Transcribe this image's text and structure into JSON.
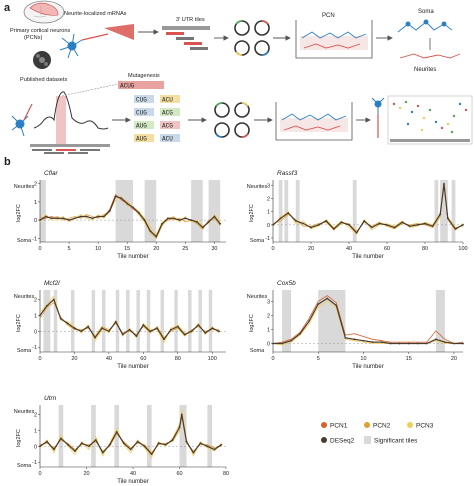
{
  "panel_a": {
    "letter": "a",
    "pcn_label_1": "Primary cortical neurons",
    "pcn_label_2": "(PCNs)",
    "published_label": "Published datasets",
    "neurite_mrna_label": "Neurite-localized mRNAs",
    "utr_tiles_label": "3′ UTR tiles",
    "pcn_box_label": "PCN",
    "soma_label": "Soma",
    "neurites_label": "Neurites",
    "mutagenesis_label": "Mutagenesis",
    "motif_top": "ACUG",
    "motif_variants": [
      [
        "CUG",
        "ACU"
      ],
      [
        "CUG",
        "ACG"
      ],
      [
        "AUG",
        "ACG"
      ],
      [
        "AUG",
        "ACU"
      ]
    ]
  },
  "panel_b": {
    "letter": "b",
    "y_neurites": "Neurites",
    "y_soma": "Soma",
    "y_axis": "log2FC",
    "x_axis": "Tile number",
    "legend": {
      "pcn1": "PCN1",
      "pcn2": "PCN2",
      "pcn3": "PCN3",
      "deseq2": "DESeq2",
      "significant": "Significant tiles"
    }
  },
  "colors": {
    "pcn1": "#d8602a",
    "pcn2": "#e0a030",
    "pcn3": "#f0cf58",
    "deseq2": "#4a3a30",
    "significant": "#d9d9d9",
    "header_red": "#d9534f"
  },
  "chart_data": [
    {
      "type": "line",
      "title": "Cflar",
      "xlabel": "Tile number",
      "ylabel": "log2FC",
      "xlim": [
        0,
        32
      ],
      "ylim": [
        -1.2,
        2.2
      ],
      "xticks": [
        0,
        5,
        10,
        15,
        20,
        25,
        30
      ],
      "yticks": [
        -1,
        0,
        1,
        2
      ],
      "significant": [
        [
          0,
          1
        ],
        [
          13,
          16
        ],
        [
          18,
          20
        ],
        [
          26,
          28
        ],
        [
          29,
          31
        ]
      ],
      "x": [
        0,
        1,
        2,
        3,
        4,
        5,
        6,
        7,
        8,
        9,
        10,
        11,
        12,
        13,
        14,
        15,
        16,
        17,
        18,
        19,
        20,
        21,
        22,
        23,
        24,
        25,
        26,
        27,
        28,
        29,
        30,
        31
      ],
      "series": [
        {
          "name": "PCN1",
          "values": [
            0.0,
            0.1,
            0.2,
            0.1,
            0.1,
            0.0,
            0.1,
            0.2,
            0.2,
            0.1,
            0.2,
            0.2,
            0.6,
            1.4,
            1.1,
            0.9,
            0.6,
            0.4,
            0.0,
            -0.6,
            -0.9,
            -0.2,
            0.0,
            0.1,
            0.0,
            0.1,
            0.0,
            -0.1,
            -0.4,
            -0.1,
            0.2,
            -0.2
          ]
        },
        {
          "name": "PCN2",
          "values": [
            0.1,
            0.2,
            0.1,
            0.2,
            0.0,
            0.1,
            0.2,
            0.1,
            0.3,
            0.2,
            0.1,
            0.3,
            0.5,
            1.3,
            1.2,
            1.0,
            0.7,
            0.3,
            -0.1,
            -0.7,
            -1.0,
            -0.3,
            0.1,
            0.0,
            0.1,
            -0.1,
            0.0,
            -0.2,
            -0.5,
            0.0,
            0.1,
            -0.3
          ]
        },
        {
          "name": "PCN3",
          "values": [
            -0.1,
            0.3,
            0.0,
            0.0,
            0.2,
            -0.1,
            0.1,
            0.3,
            0.1,
            0.0,
            0.3,
            0.1,
            0.5,
            1.1,
            1.3,
            0.8,
            0.7,
            0.5,
            0.1,
            -0.4,
            -0.8,
            -0.1,
            0.1,
            0.2,
            -0.1,
            0.2,
            -0.1,
            0.0,
            -0.3,
            -0.2,
            0.3,
            -0.1
          ]
        },
        {
          "name": "DESeq2",
          "values": [
            0.0,
            0.2,
            0.1,
            0.1,
            0.1,
            0.0,
            0.1,
            0.2,
            0.2,
            0.1,
            0.2,
            0.2,
            0.5,
            1.3,
            1.2,
            0.9,
            0.7,
            0.4,
            0.0,
            -0.6,
            -0.9,
            -0.2,
            0.1,
            0.1,
            0.0,
            0.1,
            0.0,
            -0.1,
            -0.4,
            -0.1,
            0.2,
            -0.2
          ]
        }
      ]
    },
    {
      "type": "line",
      "title": "Rassf3",
      "xlabel": "Tile number",
      "ylabel": "log2FC",
      "xlim": [
        0,
        100
      ],
      "ylim": [
        -1.3,
        3.4
      ],
      "xticks": [
        0,
        20,
        40,
        60,
        80,
        100
      ],
      "yticks": [
        -1,
        0,
        1,
        2,
        3
      ],
      "significant": [
        [
          3,
          5
        ],
        [
          6,
          8
        ],
        [
          12,
          14
        ],
        [
          42,
          44
        ],
        [
          85,
          87
        ],
        [
          88,
          92
        ],
        [
          94,
          96
        ]
      ],
      "x": [
        0,
        4,
        8,
        12,
        16,
        20,
        24,
        28,
        32,
        36,
        40,
        44,
        48,
        52,
        56,
        60,
        64,
        68,
        72,
        76,
        80,
        84,
        88,
        90,
        92,
        96,
        100
      ],
      "series": [
        {
          "name": "PCN1",
          "values": [
            0.0,
            0.5,
            0.9,
            0.3,
            0.1,
            -0.2,
            0.0,
            0.3,
            -0.3,
            0.2,
            0.0,
            -0.6,
            0.3,
            -0.2,
            0.1,
            0.0,
            -0.2,
            0.2,
            -0.1,
            0.0,
            0.1,
            -0.1,
            0.8,
            3.0,
            0.5,
            -0.3,
            0.0
          ]
        },
        {
          "name": "PCN2",
          "values": [
            0.1,
            0.3,
            0.8,
            0.4,
            -0.1,
            -0.1,
            0.1,
            0.2,
            -0.4,
            0.1,
            0.1,
            -0.5,
            0.2,
            -0.1,
            0.2,
            -0.1,
            -0.3,
            0.1,
            0.0,
            0.1,
            0.0,
            -0.2,
            0.6,
            3.2,
            0.4,
            -0.4,
            0.1
          ]
        },
        {
          "name": "PCN3",
          "values": [
            -0.1,
            0.6,
            1.0,
            0.1,
            0.3,
            -0.3,
            -0.1,
            0.4,
            -0.2,
            0.3,
            -0.2,
            -0.7,
            0.4,
            -0.4,
            0.0,
            0.1,
            -0.1,
            0.3,
            -0.2,
            -0.1,
            0.2,
            0.0,
            0.9,
            2.8,
            0.6,
            -0.2,
            -0.1
          ]
        },
        {
          "name": "DESeq2",
          "values": [
            0.0,
            0.5,
            0.9,
            0.3,
            0.1,
            -0.2,
            0.0,
            0.3,
            -0.3,
            0.2,
            0.0,
            -0.6,
            0.3,
            -0.2,
            0.1,
            0.0,
            -0.2,
            0.2,
            -0.1,
            0.0,
            0.1,
            -0.1,
            0.8,
            3.1,
            0.5,
            -0.3,
            0.0
          ]
        }
      ]
    },
    {
      "type": "line",
      "title": "Mcf2l",
      "xlabel": "Tile number",
      "ylabel": "log2FC",
      "xlim": [
        0,
        108
      ],
      "ylim": [
        -1.3,
        2.6
      ],
      "xticks": [
        0,
        20,
        40,
        60,
        80,
        100
      ],
      "yticks": [
        -1,
        0,
        1,
        2
      ],
      "significant": [
        [
          2,
          6
        ],
        [
          8,
          10
        ],
        [
          18,
          20
        ],
        [
          30,
          32
        ],
        [
          36,
          38
        ],
        [
          44,
          46
        ],
        [
          50,
          52
        ],
        [
          56,
          58
        ],
        [
          62,
          64
        ],
        [
          70,
          72
        ],
        [
          78,
          80
        ],
        [
          86,
          88
        ],
        [
          92,
          94
        ],
        [
          98,
          100
        ]
      ],
      "x": [
        0,
        4,
        8,
        12,
        16,
        20,
        24,
        28,
        32,
        36,
        40,
        44,
        48,
        52,
        56,
        60,
        64,
        68,
        72,
        76,
        80,
        84,
        88,
        92,
        96,
        100,
        104
      ],
      "series": [
        {
          "name": "PCN1",
          "values": [
            1.0,
            1.6,
            2.0,
            0.8,
            0.5,
            0.2,
            0.0,
            0.3,
            -0.4,
            0.2,
            0.0,
            0.6,
            -0.2,
            0.1,
            -0.3,
            0.4,
            0.0,
            0.2,
            -0.5,
            0.1,
            0.3,
            -0.2,
            0.0,
            0.4,
            -0.1,
            0.2,
            0.0
          ]
        },
        {
          "name": "PCN2",
          "values": [
            0.8,
            1.5,
            1.8,
            0.9,
            0.4,
            0.1,
            0.1,
            0.2,
            -0.3,
            0.3,
            0.1,
            0.5,
            -0.1,
            0.0,
            -0.2,
            0.3,
            -0.1,
            0.3,
            -0.4,
            0.0,
            0.2,
            -0.3,
            0.1,
            0.3,
            0.0,
            0.1,
            0.1
          ]
        },
        {
          "name": "PCN3",
          "values": [
            1.2,
            1.7,
            2.2,
            0.7,
            0.6,
            0.3,
            -0.1,
            0.4,
            -0.6,
            0.1,
            -0.1,
            0.7,
            -0.3,
            0.2,
            -0.4,
            0.5,
            0.1,
            0.1,
            -0.7,
            0.2,
            0.4,
            -0.1,
            -0.1,
            0.5,
            -0.2,
            0.3,
            -0.1
          ]
        },
        {
          "name": "DESeq2",
          "values": [
            1.0,
            1.6,
            2.0,
            0.8,
            0.5,
            0.2,
            0.0,
            0.3,
            -0.4,
            0.2,
            0.0,
            0.6,
            -0.2,
            0.1,
            -0.3,
            0.4,
            0.0,
            0.2,
            -0.5,
            0.1,
            0.3,
            -0.2,
            0.0,
            0.4,
            -0.1,
            0.2,
            0.0
          ]
        }
      ]
    },
    {
      "type": "line",
      "title": "Cox5b",
      "xlabel": "Tile number",
      "ylabel": "log2FC",
      "xlim": [
        0,
        21
      ],
      "ylim": [
        -0.6,
        3.8
      ],
      "xticks": [
        0,
        5,
        10,
        15,
        20
      ],
      "yticks": [
        0,
        1,
        2,
        3
      ],
      "significant": [
        [
          1,
          2
        ],
        [
          5,
          8
        ],
        [
          18,
          19
        ]
      ],
      "x": [
        0,
        1,
        2,
        3,
        4,
        5,
        6,
        7,
        8,
        9,
        10,
        11,
        12,
        13,
        14,
        15,
        16,
        17,
        18,
        19,
        20,
        21
      ],
      "series": [
        {
          "name": "PCN1",
          "values": [
            0.0,
            0.1,
            0.3,
            0.8,
            1.8,
            3.0,
            3.4,
            2.9,
            0.6,
            0.7,
            0.5,
            0.3,
            0.2,
            0.1,
            0.1,
            0.1,
            0.1,
            0.1,
            0.9,
            0.3,
            0.0,
            0.1
          ]
        },
        {
          "name": "PCN2",
          "values": [
            0.0,
            0.0,
            0.2,
            0.7,
            1.6,
            2.8,
            3.2,
            2.7,
            0.4,
            0.3,
            0.2,
            0.1,
            0.1,
            0.0,
            0.0,
            0.0,
            0.0,
            0.0,
            0.3,
            0.1,
            0.0,
            0.0
          ]
        },
        {
          "name": "PCN3",
          "values": [
            0.0,
            -0.1,
            0.1,
            0.6,
            1.4,
            2.6,
            3.0,
            2.5,
            0.3,
            0.2,
            0.1,
            0.0,
            0.0,
            0.0,
            0.0,
            0.0,
            0.0,
            0.0,
            0.2,
            0.0,
            0.0,
            0.0
          ]
        },
        {
          "name": "DESeq2",
          "values": [
            0.0,
            0.0,
            0.2,
            0.7,
            1.6,
            2.8,
            3.2,
            2.7,
            0.4,
            0.3,
            0.2,
            0.1,
            0.1,
            0.0,
            0.0,
            0.0,
            0.0,
            0.0,
            0.3,
            0.1,
            0.0,
            0.0
          ]
        }
      ]
    },
    {
      "type": "line",
      "title": "Utrn",
      "xlabel": "Tile number",
      "ylabel": "log2FC",
      "xlim": [
        0,
        80
      ],
      "ylim": [
        -1.3,
        2.6
      ],
      "xticks": [
        0,
        20,
        40,
        60,
        80
      ],
      "yticks": [
        -1,
        0,
        1,
        2
      ],
      "significant": [
        [
          8,
          10
        ],
        [
          22,
          24
        ],
        [
          32,
          34
        ],
        [
          46,
          48
        ],
        [
          60,
          63
        ],
        [
          72,
          74
        ]
      ],
      "x": [
        0,
        3,
        6,
        9,
        12,
        15,
        18,
        21,
        24,
        27,
        30,
        33,
        36,
        39,
        42,
        45,
        48,
        51,
        54,
        57,
        60,
        61,
        63,
        66,
        69,
        72,
        75,
        78
      ],
      "series": [
        {
          "name": "PCN1",
          "values": [
            0.0,
            0.3,
            -0.2,
            0.5,
            0.1,
            -0.3,
            0.2,
            0.0,
            0.4,
            -0.4,
            0.1,
            0.9,
            0.2,
            -0.2,
            0.3,
            0.0,
            -0.5,
            0.2,
            0.1,
            0.4,
            1.2,
            2.1,
            0.3,
            -0.4,
            0.2,
            0.0,
            -0.2,
            0.1
          ]
        },
        {
          "name": "PCN2",
          "values": [
            0.1,
            0.2,
            -0.1,
            0.4,
            0.2,
            -0.2,
            0.1,
            0.1,
            0.3,
            -0.3,
            0.0,
            0.8,
            0.3,
            -0.1,
            0.2,
            0.1,
            -0.4,
            0.1,
            0.2,
            0.3,
            1.0,
            1.9,
            0.2,
            -0.3,
            0.1,
            0.1,
            -0.1,
            0.0
          ]
        },
        {
          "name": "PCN3",
          "values": [
            -0.1,
            0.4,
            -0.4,
            0.7,
            0.0,
            -0.5,
            0.3,
            -0.2,
            0.6,
            -0.6,
            0.2,
            1.1,
            0.1,
            -0.4,
            0.4,
            -0.1,
            -0.7,
            0.3,
            0.0,
            0.5,
            1.4,
            2.3,
            0.4,
            -0.6,
            0.3,
            -0.1,
            -0.3,
            0.2
          ]
        },
        {
          "name": "DESeq2",
          "values": [
            0.0,
            0.3,
            -0.2,
            0.5,
            0.1,
            -0.3,
            0.2,
            0.0,
            0.4,
            -0.4,
            0.1,
            0.9,
            0.2,
            -0.2,
            0.3,
            0.0,
            -0.5,
            0.2,
            0.1,
            0.4,
            1.2,
            2.0,
            0.3,
            -0.4,
            0.2,
            0.0,
            -0.2,
            0.1
          ]
        }
      ]
    }
  ]
}
